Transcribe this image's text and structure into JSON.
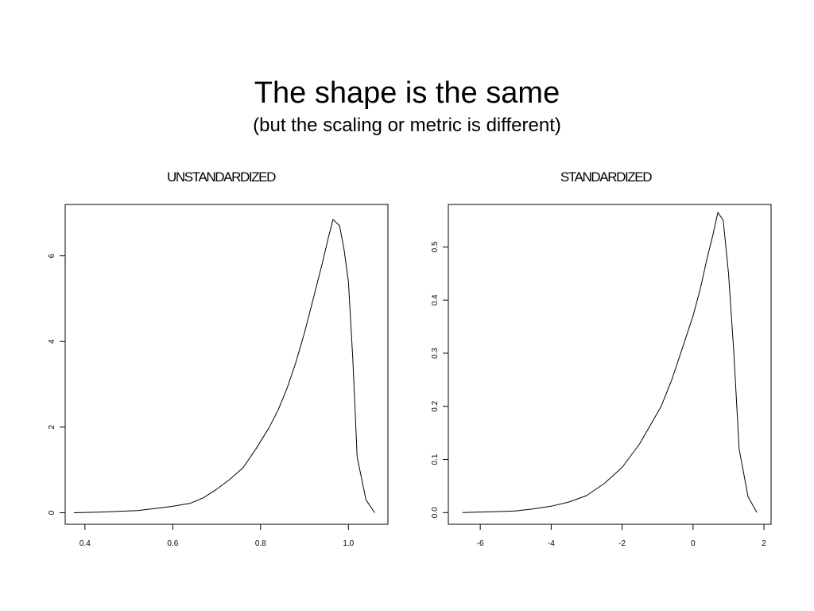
{
  "slide": {
    "title": "The shape is the same",
    "subtitle": "(but the scaling or metric is different)"
  },
  "chart_data": [
    {
      "type": "line",
      "title": "UNSTANDARDIZED",
      "xlabel": "",
      "ylabel": "",
      "xlim": [
        0.355,
        1.09
      ],
      "ylim": [
        -0.27,
        7.2
      ],
      "xticks": [
        0.4,
        0.6,
        0.8,
        1.0
      ],
      "xtick_labels": [
        "0.4",
        "0.6",
        "0.8",
        "1.0"
      ],
      "yticks": [
        0,
        2,
        4,
        6
      ],
      "ytick_labels": [
        "0",
        "2",
        "4",
        "6"
      ],
      "grid": false,
      "series": [
        {
          "x": [
            0.375,
            0.45,
            0.52,
            0.56,
            0.6,
            0.64,
            0.67,
            0.7,
            0.73,
            0.76,
            0.79,
            0.82,
            0.84,
            0.86,
            0.88,
            0.9,
            0.92,
            0.94,
            0.955,
            0.965,
            0.98,
            0.99,
            1.0,
            1.01,
            1.02,
            1.04,
            1.06
          ],
          "y": [
            0.0,
            0.02,
            0.05,
            0.1,
            0.15,
            0.22,
            0.35,
            0.55,
            0.78,
            1.05,
            1.5,
            2.0,
            2.4,
            2.9,
            3.5,
            4.2,
            5.0,
            5.8,
            6.45,
            6.85,
            6.7,
            6.15,
            5.4,
            3.6,
            1.3,
            0.3,
            0.0
          ]
        }
      ]
    },
    {
      "type": "line",
      "title": "STANDARDIZED",
      "xlabel": "",
      "ylabel": "",
      "xlim": [
        -6.9,
        2.2
      ],
      "ylim": [
        -0.022,
        0.58
      ],
      "xticks": [
        -6,
        -4,
        -2,
        0,
        2
      ],
      "xtick_labels": [
        "-6",
        "-4",
        "-2",
        "0",
        "2"
      ],
      "yticks": [
        0.0,
        0.1,
        0.2,
        0.3,
        0.4,
        0.5
      ],
      "ytick_labels": [
        "0.0",
        "0.1",
        "0.2",
        "0.3",
        "0.4",
        "0.5"
      ],
      "grid": false,
      "series": [
        {
          "x": [
            -6.5,
            -5.5,
            -5.0,
            -4.5,
            -4.0,
            -3.5,
            -3.0,
            -2.5,
            -2.0,
            -1.5,
            -1.2,
            -0.9,
            -0.6,
            -0.3,
            0.0,
            0.2,
            0.4,
            0.55,
            0.7,
            0.85,
            1.0,
            1.15,
            1.3,
            1.55,
            1.8
          ],
          "y": [
            0.0,
            0.002,
            0.003,
            0.007,
            0.012,
            0.02,
            0.032,
            0.055,
            0.085,
            0.13,
            0.165,
            0.2,
            0.25,
            0.31,
            0.37,
            0.42,
            0.48,
            0.52,
            0.565,
            0.55,
            0.45,
            0.3,
            0.12,
            0.03,
            0.0
          ]
        }
      ]
    }
  ]
}
